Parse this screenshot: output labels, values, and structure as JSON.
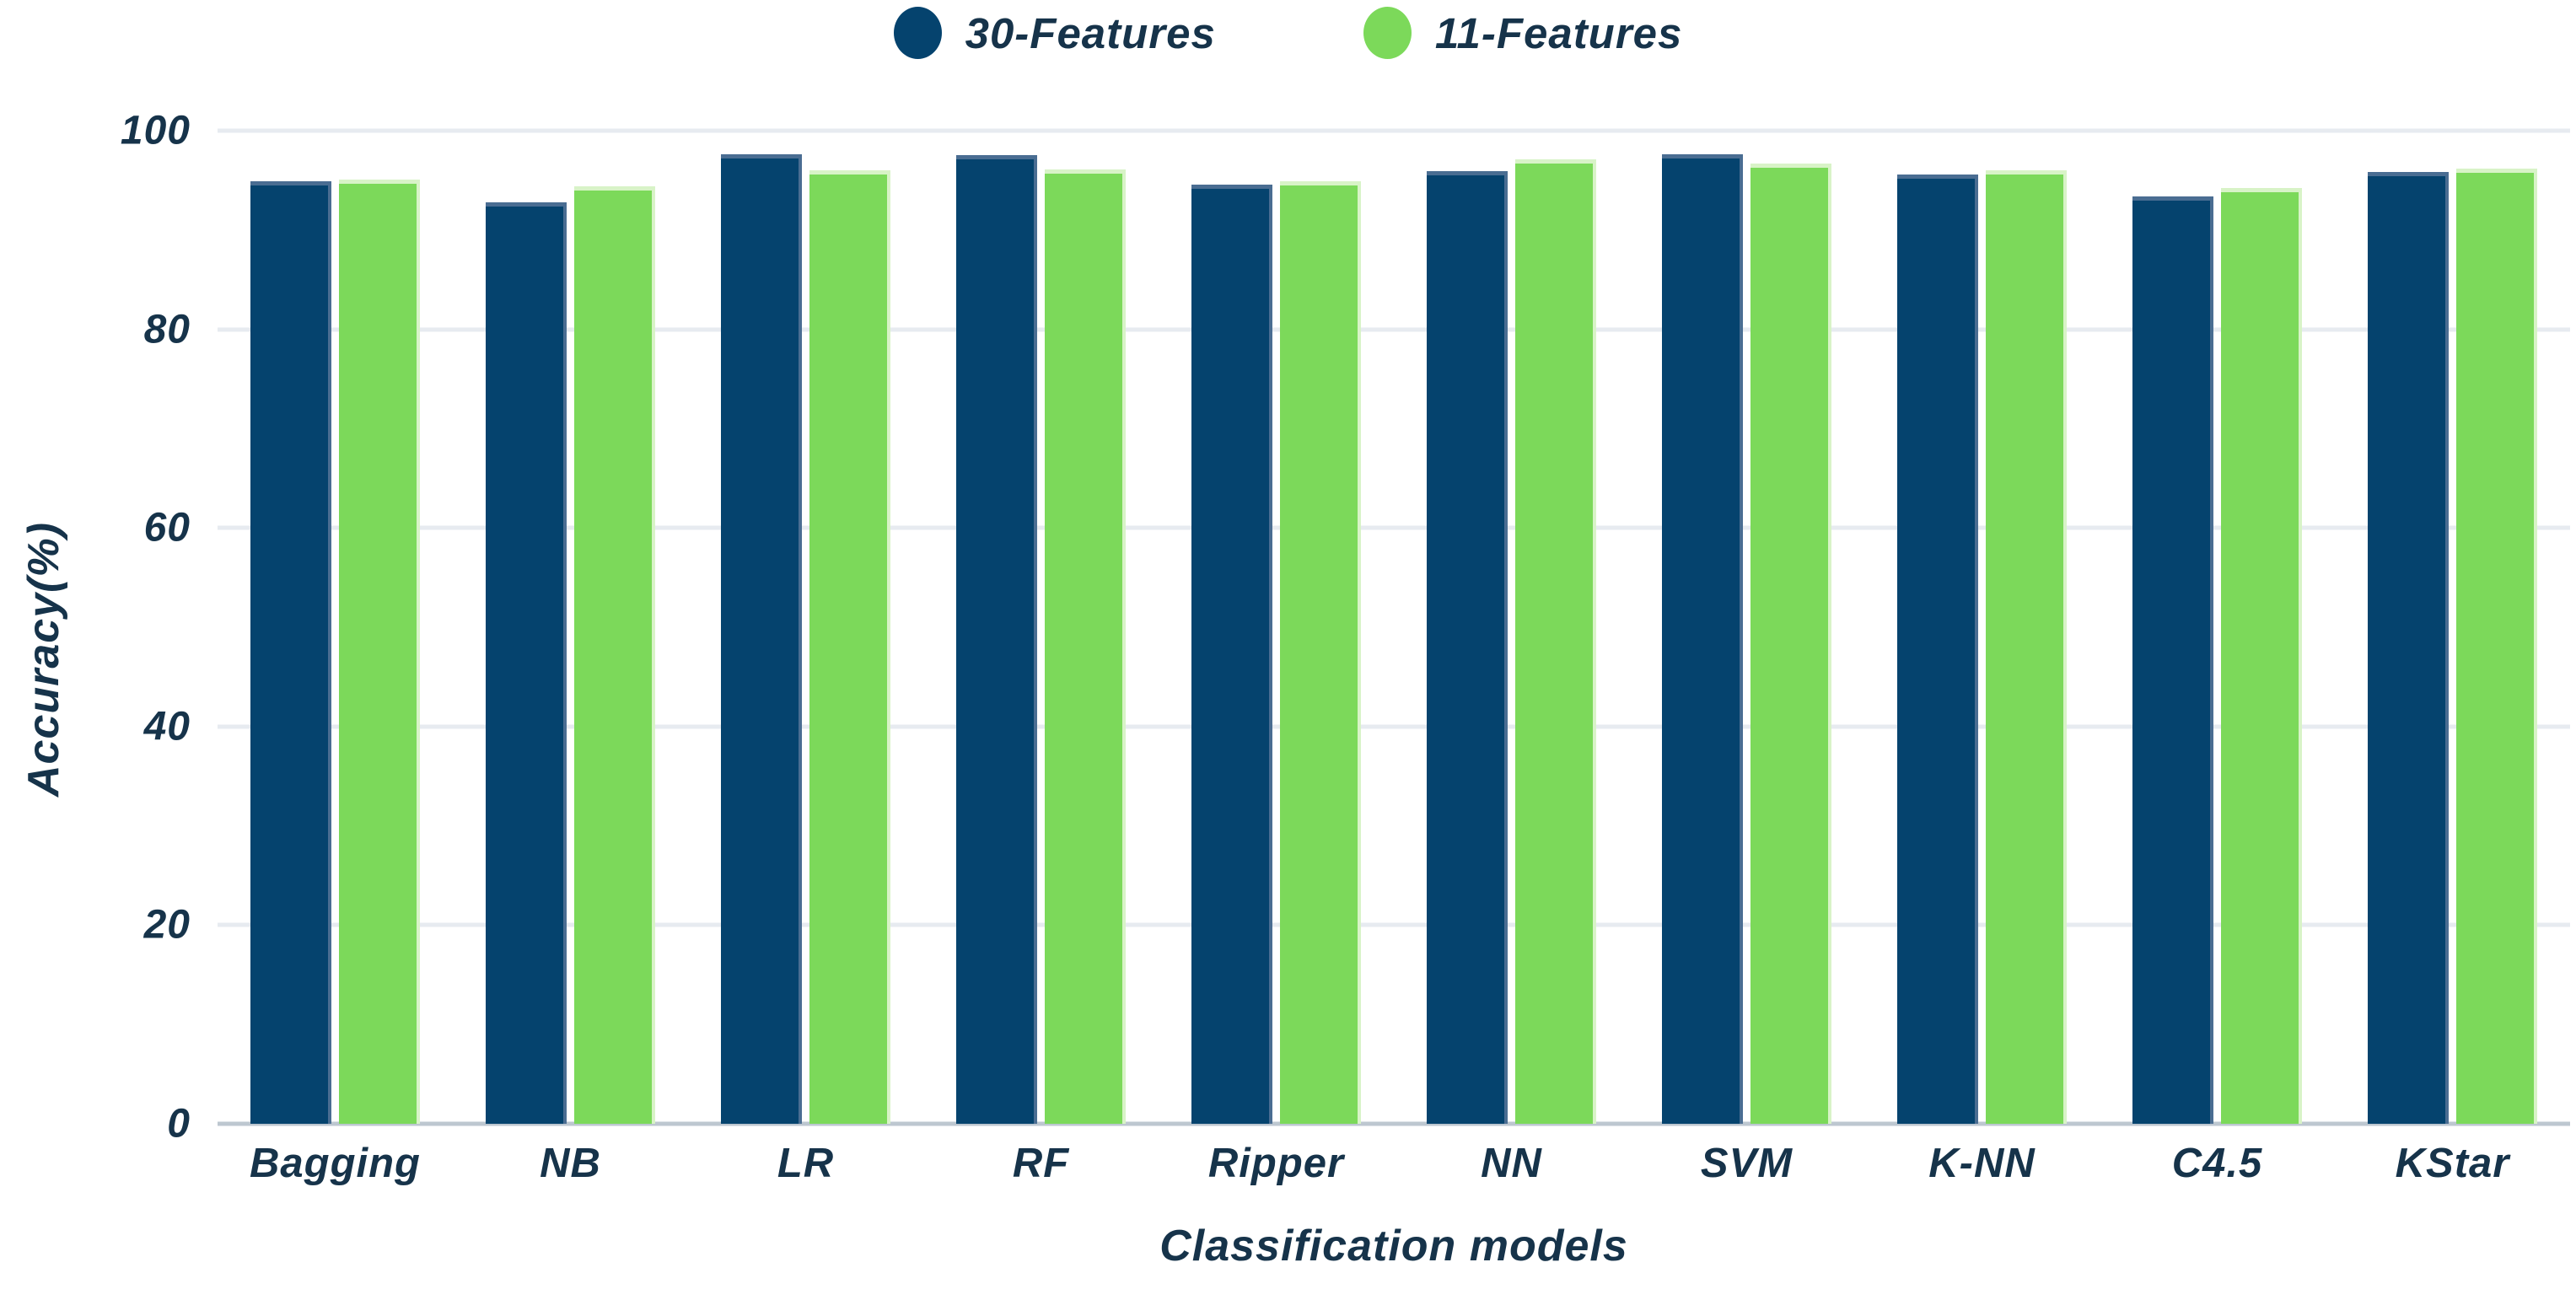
{
  "colors": {
    "background": "#FFFFFF",
    "text": "#16334A",
    "gridline": "#E7EBF0",
    "baseline": "#BDC7D0",
    "series_blue": "#05436E",
    "series_green": "#7CD95A"
  },
  "chart_data": {
    "type": "bar",
    "title": "",
    "xlabel": "Classification models",
    "ylabel": "Accuracy(%)",
    "categories": [
      "Bagging",
      "NB",
      "LR",
      "RF",
      "Ripper",
      "NN",
      "SVM",
      "K-NN",
      "C4.5",
      "KStar"
    ],
    "series": [
      {
        "name": "30-Features",
        "color": "#05436E",
        "edge_color": "#4A6D92",
        "values": [
          94.9,
          92.8,
          97.6,
          97.5,
          94.6,
          95.9,
          97.6,
          95.6,
          93.4,
          95.8
        ]
      },
      {
        "name": "11-Features",
        "color": "#7CD95A",
        "edge_color": "#D8F3C7",
        "values": [
          95.1,
          94.4,
          96.0,
          96.1,
          94.9,
          97.1,
          96.7,
          96.0,
          94.2,
          96.2
        ]
      }
    ],
    "ylim": [
      0,
      100
    ],
    "yticks": [
      0,
      20,
      40,
      60,
      80,
      100
    ],
    "grid": "horizontal",
    "legend_position": "top-center"
  }
}
